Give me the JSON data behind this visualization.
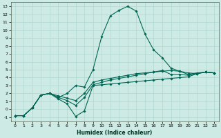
{
  "xlabel": "Humidex (Indice chaleur)",
  "ylabel": "",
  "bg_color": "#cdeae4",
  "grid_color": "#b0d8d0",
  "line_color": "#006655",
  "marker_color": "#006655",
  "xlim": [
    -0.5,
    23.5
  ],
  "ylim": [
    -1.5,
    13.5
  ],
  "xticks": [
    0,
    1,
    2,
    3,
    4,
    5,
    6,
    7,
    8,
    9,
    10,
    11,
    12,
    13,
    14,
    15,
    16,
    17,
    18,
    19,
    20,
    21,
    22,
    23
  ],
  "yticks": [
    -1,
    0,
    1,
    2,
    3,
    4,
    5,
    6,
    7,
    8,
    9,
    10,
    11,
    12,
    13
  ],
  "series1_x": [
    0,
    1,
    2,
    3,
    4,
    5,
    6,
    7,
    8,
    9,
    10,
    11,
    12,
    13,
    14,
    15,
    16,
    17,
    18,
    19,
    20,
    21,
    22,
    23
  ],
  "series1_y": [
    -0.8,
    -0.8,
    0.2,
    1.8,
    2.0,
    1.5,
    2.0,
    3.0,
    2.8,
    5.0,
    9.2,
    11.8,
    12.5,
    13.0,
    12.4,
    9.5,
    7.5,
    6.5,
    5.2,
    4.8,
    4.4,
    4.6,
    4.7,
    4.6
  ],
  "series2_x": [
    0,
    1,
    2,
    3,
    4,
    5,
    6,
    7,
    8,
    9,
    10,
    11,
    12,
    13,
    14,
    15,
    16,
    17,
    18,
    19,
    20,
    21,
    22,
    23
  ],
  "series2_y": [
    -0.8,
    -0.8,
    0.2,
    1.8,
    2.0,
    1.3,
    0.7,
    -0.9,
    -0.2,
    3.0,
    3.1,
    3.2,
    3.3,
    3.4,
    3.5,
    3.6,
    3.7,
    3.8,
    3.9,
    4.0,
    4.1,
    4.5,
    4.7,
    4.6
  ],
  "series3_x": [
    0,
    1,
    2,
    3,
    4,
    5,
    6,
    7,
    8,
    9,
    10,
    11,
    12,
    13,
    14,
    15,
    16,
    17,
    18,
    19,
    20,
    21,
    22,
    23
  ],
  "series3_y": [
    -0.8,
    -0.8,
    0.2,
    1.8,
    2.0,
    1.5,
    1.1,
    0.5,
    1.5,
    3.1,
    3.4,
    3.7,
    3.9,
    4.1,
    4.3,
    4.5,
    4.7,
    4.9,
    4.4,
    4.4,
    4.3,
    4.5,
    4.7,
    4.6
  ],
  "series4_x": [
    0,
    1,
    2,
    3,
    4,
    5,
    6,
    7,
    8,
    9,
    10,
    11,
    12,
    13,
    14,
    15,
    16,
    17,
    18,
    19,
    20,
    21,
    22,
    23
  ],
  "series4_y": [
    -0.8,
    -0.8,
    0.2,
    1.8,
    2.0,
    1.7,
    1.4,
    1.1,
    2.0,
    3.4,
    3.7,
    3.9,
    4.1,
    4.3,
    4.5,
    4.6,
    4.7,
    4.8,
    4.9,
    4.8,
    4.6,
    4.5,
    4.7,
    4.6
  ]
}
